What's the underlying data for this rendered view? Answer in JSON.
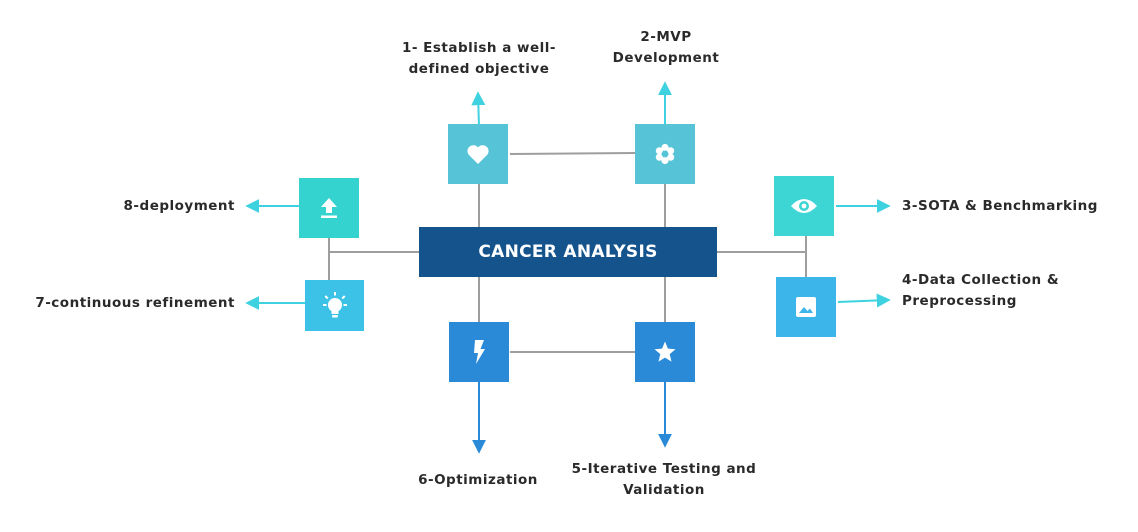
{
  "center": {
    "title": "CANCER ANALYSIS",
    "color": "#14538c"
  },
  "steps": [
    {
      "id": "s1",
      "lines": [
        "1- Establish a well-",
        "defined objective"
      ],
      "icon": "heart-icon",
      "color": "#57c3d6"
    },
    {
      "id": "s2",
      "lines": [
        "2-MVP",
        "Development"
      ],
      "icon": "flower-icon",
      "color": "#57c3d6"
    },
    {
      "id": "s3",
      "lines": [
        "3-SOTA & Benchmarking"
      ],
      "icon": "eye-icon",
      "color": "#3dd6d5"
    },
    {
      "id": "s4",
      "lines": [
        "4-Data Collection &",
        "Preprocessing"
      ],
      "icon": "image-icon",
      "color": "#3cb6ea"
    },
    {
      "id": "s5",
      "lines": [
        "5-Iterative Testing and",
        "Validation"
      ],
      "icon": "star-icon",
      "color": "#2a8ad8"
    },
    {
      "id": "s6",
      "lines": [
        "6-Optimization"
      ],
      "icon": "lightning-icon",
      "color": "#2a8ad8"
    },
    {
      "id": "s7",
      "lines": [
        "7-continuous refinement"
      ],
      "icon": "lightbulb-icon",
      "color": "#3cc2e6"
    },
    {
      "id": "s8",
      "lines": [
        "8-deployment"
      ],
      "icon": "upload-icon",
      "color": "#34d3cf"
    }
  ],
  "colors": {
    "connector": "#9e9e9e",
    "arrow_cyan": "#3ed2e0",
    "arrow_blue": "#2a8ad8"
  }
}
